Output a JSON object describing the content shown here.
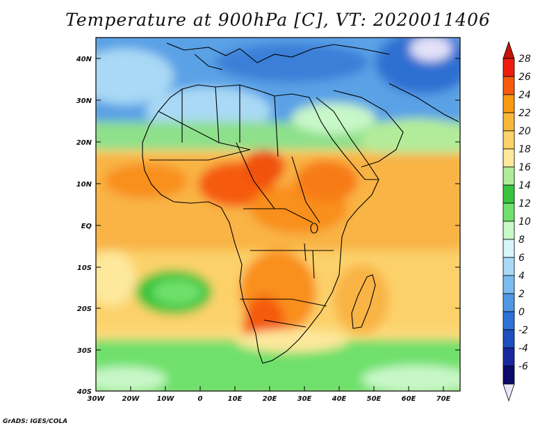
{
  "title": "Temperature at 900hPa [C], VT: 2020011406",
  "credit": "GrADS: IGES/COLA",
  "lat_labels": [
    "40N",
    "30N",
    "20N",
    "10N",
    "EQ",
    "10S",
    "20S",
    "30S",
    "40S"
  ],
  "lon_labels": [
    "30W",
    "20W",
    "10W",
    "0",
    "10E",
    "20E",
    "30E",
    "40E",
    "50E",
    "60E",
    "70E"
  ],
  "colorbar": {
    "labels": [
      "28",
      "26",
      "24",
      "22",
      "20",
      "18",
      "16",
      "14",
      "12",
      "10",
      "8",
      "6",
      "4",
      "2",
      "0",
      "-2",
      "-4",
      "-6"
    ],
    "colors": [
      "#ee1c0e",
      "#f55a0d",
      "#f89a14",
      "#f9b73a",
      "#fbd36a",
      "#fde89b",
      "#b2ec9a",
      "#39c43d",
      "#6fe06c",
      "#c8f7c8",
      "#d8f5fb",
      "#a9d9f5",
      "#79bdf0",
      "#4f97e2",
      "#2d72d6",
      "#1f4fc0",
      "#1a28a0",
      "#0b0b6b"
    ],
    "top_arrow": "#c31508",
    "bottom_arrow": "#e9e7fb"
  }
}
